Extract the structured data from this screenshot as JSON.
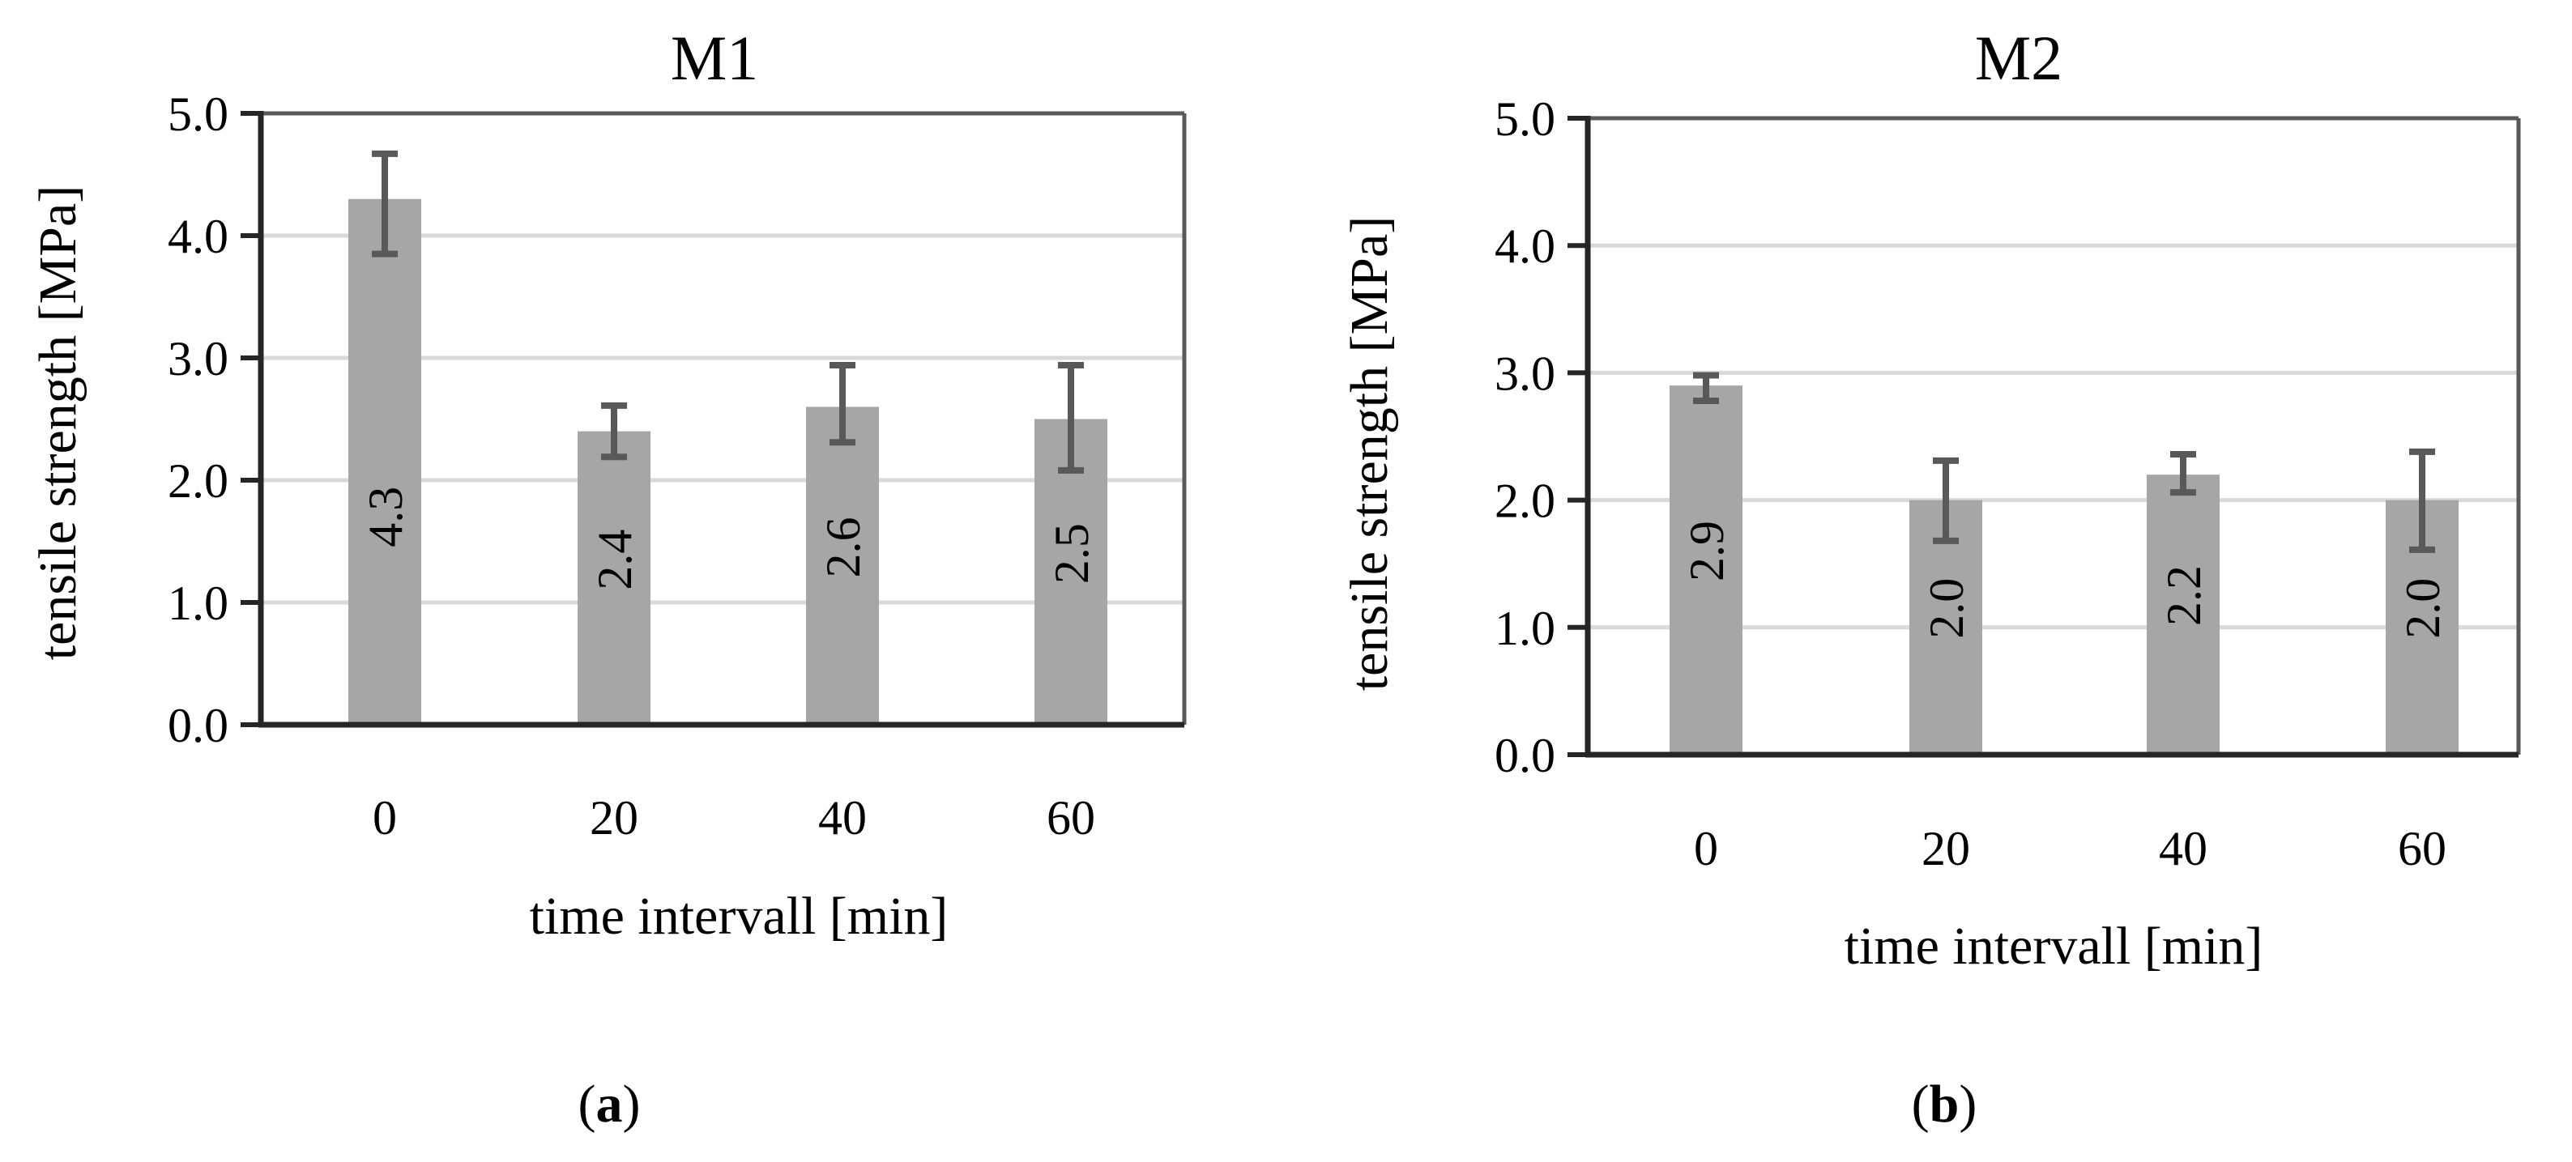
{
  "chart_data": [
    {
      "id": "a",
      "type": "bar",
      "title": "M1",
      "xlabel": "time intervall [min]",
      "ylabel": "tensile strength [MPa]",
      "categories": [
        "0",
        "20",
        "40",
        "60"
      ],
      "values": [
        4.3,
        2.4,
        2.6,
        2.5
      ],
      "value_labels": [
        "4.3",
        "2.4",
        "2.6",
        "2.5"
      ],
      "errors": [
        {
          "low": 3.85,
          "high": 4.67
        },
        {
          "low": 2.19,
          "high": 2.61
        },
        {
          "low": 2.31,
          "high": 2.94
        },
        {
          "low": 2.08,
          "high": 2.94
        }
      ],
      "ylim": [
        0,
        5
      ],
      "yticks": [
        "0.0",
        "1.0",
        "2.0",
        "3.0",
        "4.0",
        "5.0"
      ],
      "grid": true,
      "caption_open": "(",
      "caption_letter": "a",
      "caption_close": ")",
      "colors": {
        "bar": "#a6a6a6",
        "error": "#595959",
        "grid": "#d9d9d9",
        "axis": "#262626",
        "frame": "#595959"
      }
    },
    {
      "id": "b",
      "type": "bar",
      "title": "M2",
      "xlabel": "time intervall [min]",
      "ylabel": "tensile strength [MPa]",
      "categories": [
        "0",
        "20",
        "40",
        "60"
      ],
      "values": [
        2.9,
        2.0,
        2.2,
        2.0
      ],
      "value_labels": [
        "2.9",
        "2.0",
        "2.2",
        "2.0"
      ],
      "errors": [
        {
          "low": 2.78,
          "high": 2.98
        },
        {
          "low": 1.68,
          "high": 2.31
        },
        {
          "low": 2.06,
          "high": 2.36
        },
        {
          "low": 1.61,
          "high": 2.38
        }
      ],
      "ylim": [
        0,
        5
      ],
      "yticks": [
        "0.0",
        "1.0",
        "2.0",
        "3.0",
        "4.0",
        "5.0"
      ],
      "grid": true,
      "caption_open": "(",
      "caption_letter": "b",
      "caption_close": ")",
      "colors": {
        "bar": "#a6a6a6",
        "error": "#595959",
        "grid": "#d9d9d9",
        "axis": "#262626",
        "frame": "#595959"
      }
    }
  ]
}
